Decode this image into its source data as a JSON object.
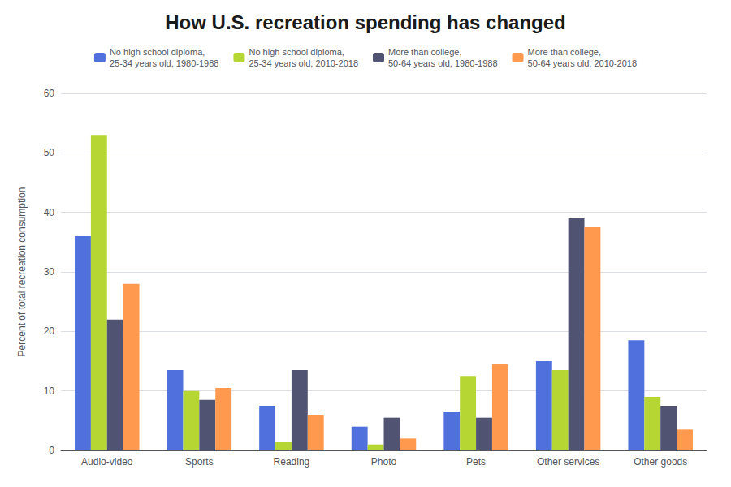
{
  "chart_data": {
    "type": "bar",
    "title": "How U.S. recreation spending has changed",
    "ylabel": "Percent of total recreation consumption",
    "categories": [
      "Audio-video",
      "Sports",
      "Reading",
      "Photo",
      "Pets",
      "Other services",
      "Other goods"
    ],
    "series": [
      {
        "name": "No high school diploma,\n25-34 years old, 1980-1988",
        "values": [
          36,
          13.5,
          7.5,
          4,
          6.5,
          15,
          18.5
        ]
      },
      {
        "name": "No high school diploma,\n25-34 years old, 2010-2018",
        "values": [
          53,
          10,
          1.5,
          1,
          12.5,
          13.5,
          9
        ]
      },
      {
        "name": "More than college,\n50-64 years old, 1980-1988",
        "values": [
          22,
          8.5,
          13.5,
          5.5,
          5.5,
          39,
          7.5
        ]
      },
      {
        "name": "More than college,\n50-64 years old, 2010-2018",
        "values": [
          28,
          10.5,
          6,
          2,
          14.5,
          37.5,
          3.5
        ]
      }
    ],
    "ylim": [
      0,
      60
    ],
    "yticks": [
      0,
      10,
      20,
      30,
      40,
      50,
      60
    ],
    "grid": true,
    "legend": "top"
  }
}
